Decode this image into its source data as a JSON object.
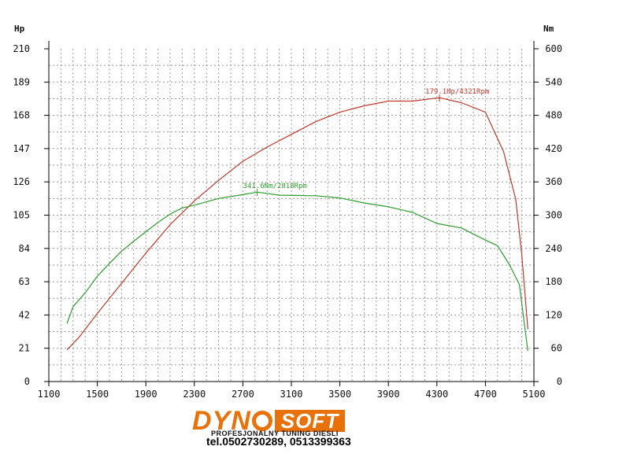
{
  "chart_data": {
    "type": "line",
    "x_ticks": [
      1100,
      1500,
      1900,
      2300,
      2700,
      3100,
      3500,
      3900,
      4300,
      4700,
      5100
    ],
    "xlim": [
      1100,
      5100
    ],
    "y_left_unit": "Hp",
    "y_left_ticks": [
      0,
      21,
      42,
      63,
      84,
      105,
      126,
      147,
      168,
      189,
      210
    ],
    "y_left_lim": [
      0,
      210
    ],
    "y_right_unit": "Nm",
    "y_right_ticks": [
      0,
      60,
      120,
      180,
      240,
      300,
      360,
      420,
      480,
      540,
      600
    ],
    "y_right_lim": [
      0,
      600
    ],
    "grid": true,
    "series": [
      {
        "axis": "left",
        "color": "#c0392b",
        "x": [
          1250,
          1350,
          1500,
          1700,
          1900,
          2100,
          2300,
          2500,
          2700,
          2900,
          3100,
          3300,
          3500,
          3700,
          3900,
          4100,
          4321,
          4500,
          4700,
          4850,
          4950,
          5000,
          5050
        ],
        "y": [
          20,
          28,
          43,
          62,
          81,
          99,
          114,
          127,
          139,
          148,
          156,
          164,
          170,
          174,
          177,
          177,
          179.1,
          176,
          170,
          145,
          115,
          80,
          33
        ]
      },
      {
        "axis": "right",
        "color": "#2e9e2e",
        "x": [
          1250,
          1300,
          1400,
          1500,
          1600,
          1700,
          1800,
          1900,
          2000,
          2100,
          2200,
          2300,
          2500,
          2700,
          2818,
          3000,
          3300,
          3500,
          3700,
          3900,
          4100,
          4300,
          4500,
          4700,
          4800,
          4900,
          4980,
          5050
        ],
        "y": [
          105,
          135,
          160,
          190,
          213,
          235,
          253,
          270,
          287,
          302,
          313,
          318,
          330,
          337,
          341.6,
          336,
          335,
          331,
          322,
          315,
          305,
          285,
          277,
          255,
          245,
          210,
          175,
          55
        ]
      }
    ],
    "annotations": [
      {
        "series": 0,
        "x": 4321,
        "y": 179.1,
        "text": "179.1Hp/4321Rpm"
      },
      {
        "series": 1,
        "x": 2818,
        "y": 341.6,
        "text": "341.6Nm/2818Rpm"
      }
    ]
  },
  "brand": {
    "logo_prefix": "DYN",
    "logo_suffix": "SOFT",
    "tagline": "PROFESJONALNY TUNING DIESLI",
    "phone": "tel.0502730289, 0513399363"
  }
}
